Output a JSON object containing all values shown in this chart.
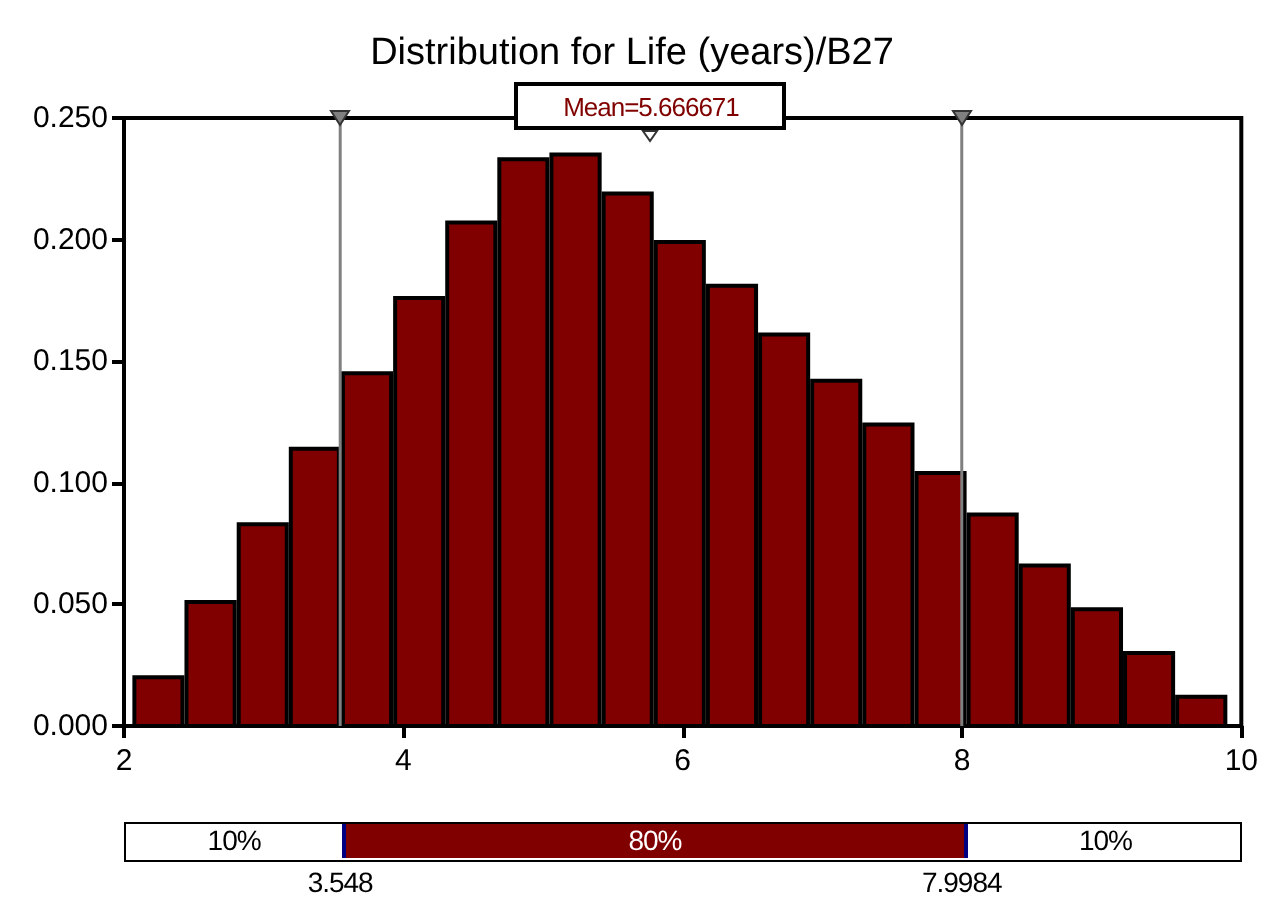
{
  "chart_data": {
    "type": "histogram",
    "title": "Distribution for Life (years)/B27",
    "bins": [
      2.06,
      2.433,
      2.807,
      3.18,
      3.553,
      3.927,
      4.3,
      4.673,
      5.046,
      5.42,
      5.793,
      6.166,
      6.54,
      6.913,
      7.286,
      7.66,
      8.033,
      8.406,
      8.779,
      9.153,
      9.526,
      9.9
    ],
    "values": [
      0.02,
      0.051,
      0.083,
      0.114,
      0.145,
      0.176,
      0.207,
      0.233,
      0.235,
      0.219,
      0.199,
      0.181,
      0.161,
      0.142,
      0.124,
      0.104,
      0.087,
      0.066,
      0.048,
      0.03,
      0.012
    ],
    "color": "#800000",
    "xlim": [
      2,
      10
    ],
    "xticks": [
      2,
      4,
      6,
      8,
      10
    ],
    "ylim": [
      0,
      0.25
    ],
    "yticks": [
      {
        "value": 0,
        "label": "0.000"
      },
      {
        "value": 0.05,
        "label": "0.050"
      },
      {
        "value": 0.1,
        "label": "0.100"
      },
      {
        "value": 0.15,
        "label": "0.150"
      },
      {
        "value": 0.2,
        "label": "0.200"
      },
      {
        "value": 0.25,
        "label": "0.250"
      }
    ],
    "ref_lines": [
      {
        "axis": "x",
        "value": 3.548,
        "color": "#808080"
      },
      {
        "axis": "x",
        "value": 7.9984,
        "color": "#808080"
      }
    ],
    "annotations": [
      "Mean=5.666671",
      "3.548",
      "7.9984",
      "10%",
      "80%",
      "10%"
    ],
    "grid": false
  }
}
